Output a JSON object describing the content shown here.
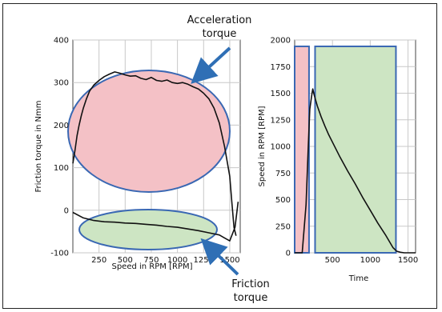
{
  "annotations": {
    "acceleration": [
      "Acceleration",
      "torque"
    ],
    "friction": [
      "Friction",
      "torque"
    ]
  },
  "colors": {
    "accel_fill": "#f4c1c6",
    "friction_fill": "#cde5c3",
    "ellipse_stroke": "#3a68b3",
    "arrow": "#2f6fb5",
    "curve": "#111111",
    "grid": "#c8c8c8"
  },
  "chart_data": [
    {
      "type": "line",
      "xlabel": "Speed in RPM [RPM]",
      "ylabel": "Friction torque in Nmm",
      "xlim": [
        0,
        1600
      ],
      "ylim": [
        -100,
        400
      ],
      "xticks": [
        250,
        500,
        750,
        1000,
        1250,
        1500
      ],
      "yticks": [
        -100,
        0,
        100,
        200,
        300,
        400
      ],
      "grid": true,
      "series": [
        {
          "name": "acceleration",
          "x": [
            0,
            20,
            40,
            60,
            80,
            100,
            130,
            160,
            200,
            250,
            300,
            350,
            400,
            450,
            500,
            550,
            600,
            650,
            700,
            750,
            800,
            850,
            900,
            950,
            1000,
            1050,
            1100,
            1150,
            1200,
            1250,
            1300,
            1350,
            1400,
            1450,
            1500,
            1520,
            1540,
            1560
          ],
          "y": [
            110,
            140,
            175,
            200,
            222,
            240,
            262,
            280,
            294,
            305,
            314,
            320,
            325,
            322,
            318,
            315,
            316,
            310,
            307,
            312,
            305,
            303,
            306,
            300,
            298,
            300,
            296,
            290,
            285,
            275,
            262,
            240,
            205,
            150,
            80,
            20,
            -40,
            -60
          ]
        },
        {
          "name": "friction",
          "x": [
            0,
            100,
            200,
            300,
            400,
            500,
            600,
            700,
            800,
            900,
            1000,
            1100,
            1200,
            1300,
            1400,
            1450,
            1500,
            1550,
            1580
          ],
          "y": [
            -5,
            -18,
            -24,
            -27,
            -28,
            -30,
            -31,
            -33,
            -35,
            -38,
            -40,
            -44,
            -48,
            -53,
            -58,
            -65,
            -72,
            -40,
            20
          ]
        }
      ]
    },
    {
      "type": "line",
      "xlabel": "Time",
      "ylabel": "Speed in RPM [RPM]",
      "xlim": [
        0,
        1600
      ],
      "ylim": [
        0,
        2000
      ],
      "xticks": [
        500,
        1000,
        1500
      ],
      "yticks": [
        0,
        250,
        500,
        750,
        1000,
        1250,
        1500,
        1750,
        2000
      ],
      "grid": true,
      "regions": [
        {
          "label": "acceleration",
          "x": [
            0,
            190
          ],
          "y": [
            0,
            1940
          ]
        },
        {
          "label": "deceleration",
          "x": [
            270,
            1340
          ],
          "y": [
            0,
            1940
          ]
        }
      ],
      "series": [
        {
          "name": "speed",
          "x": [
            0,
            60,
            100,
            150,
            180,
            200,
            230,
            240,
            260,
            300,
            350,
            400,
            450,
            500,
            600,
            700,
            800,
            900,
            1000,
            1100,
            1200,
            1300,
            1350,
            1400,
            1450,
            1600
          ],
          "y": [
            0,
            0,
            0,
            450,
            1000,
            1350,
            1500,
            1540,
            1480,
            1380,
            1280,
            1190,
            1110,
            1040,
            900,
            770,
            650,
            520,
            400,
            280,
            170,
            50,
            15,
            5,
            0,
            0
          ]
        }
      ]
    }
  ]
}
